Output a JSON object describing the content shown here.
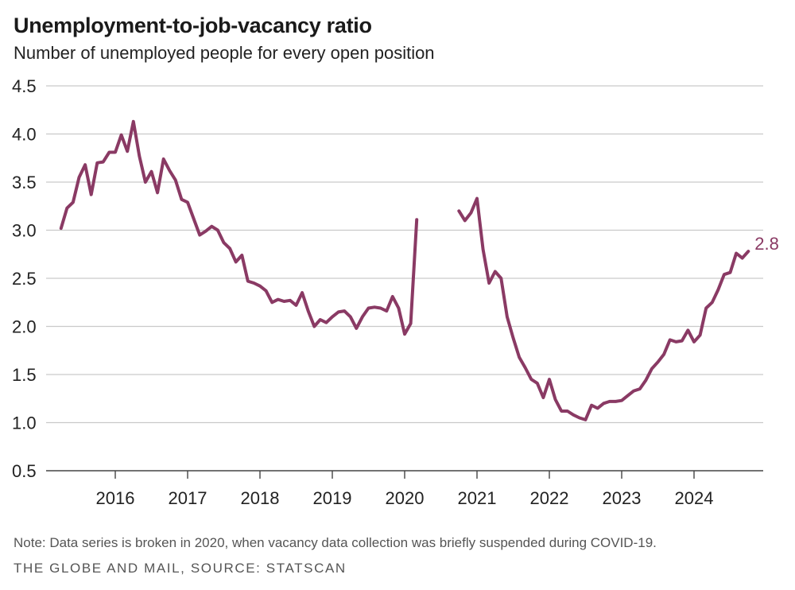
{
  "chart_data": {
    "type": "line",
    "title": "Unemployment-to-job-vacancy ratio",
    "subtitle": "Number of unemployed people for every open position",
    "xlabel": "",
    "ylabel": "",
    "ylim": [
      0.5,
      4.5
    ],
    "yticks": [
      "0.5",
      "1.0",
      "1.5",
      "2.0",
      "2.5",
      "3.0",
      "3.5",
      "4.0",
      "4.5"
    ],
    "xticks": [
      "2016",
      "2017",
      "2018",
      "2019",
      "2020",
      "2021",
      "2022",
      "2023",
      "2024"
    ],
    "end_label": "2.8",
    "series": [
      {
        "name": "Unemployment-to-job-vacancy ratio",
        "color": "#8a3a64",
        "segments": [
          [
            [
              2015.25,
              3.02
            ],
            [
              2015.333,
              3.23
            ],
            [
              2015.417,
              3.29
            ],
            [
              2015.5,
              3.55
            ],
            [
              2015.583,
              3.68
            ],
            [
              2015.667,
              3.37
            ],
            [
              2015.75,
              3.7
            ],
            [
              2015.833,
              3.71
            ],
            [
              2015.917,
              3.81
            ],
            [
              2016.0,
              3.81
            ],
            [
              2016.083,
              3.99
            ],
            [
              2016.167,
              3.82
            ],
            [
              2016.25,
              4.13
            ],
            [
              2016.333,
              3.77
            ],
            [
              2016.417,
              3.5
            ],
            [
              2016.5,
              3.61
            ],
            [
              2016.583,
              3.39
            ],
            [
              2016.667,
              3.74
            ],
            [
              2016.75,
              3.62
            ],
            [
              2016.833,
              3.52
            ],
            [
              2016.917,
              3.32
            ],
            [
              2017.0,
              3.29
            ],
            [
              2017.083,
              3.12
            ],
            [
              2017.167,
              2.95
            ],
            [
              2017.25,
              2.99
            ],
            [
              2017.333,
              3.04
            ],
            [
              2017.417,
              3.0
            ],
            [
              2017.5,
              2.87
            ],
            [
              2017.583,
              2.81
            ],
            [
              2017.667,
              2.67
            ],
            [
              2017.75,
              2.74
            ],
            [
              2017.833,
              2.47
            ],
            [
              2017.917,
              2.45
            ],
            [
              2018.0,
              2.42
            ],
            [
              2018.083,
              2.37
            ],
            [
              2018.167,
              2.25
            ],
            [
              2018.25,
              2.28
            ],
            [
              2018.333,
              2.26
            ],
            [
              2018.417,
              2.27
            ],
            [
              2018.5,
              2.22
            ],
            [
              2018.583,
              2.35
            ],
            [
              2018.667,
              2.16
            ],
            [
              2018.75,
              2.0
            ],
            [
              2018.833,
              2.07
            ],
            [
              2018.917,
              2.04
            ],
            [
              2019.0,
              2.1
            ],
            [
              2019.083,
              2.15
            ],
            [
              2019.167,
              2.16
            ],
            [
              2019.25,
              2.1
            ],
            [
              2019.333,
              1.98
            ],
            [
              2019.417,
              2.1
            ],
            [
              2019.5,
              2.19
            ],
            [
              2019.583,
              2.2
            ],
            [
              2019.667,
              2.19
            ],
            [
              2019.75,
              2.16
            ],
            [
              2019.833,
              2.31
            ],
            [
              2019.917,
              2.19
            ],
            [
              2020.0,
              1.92
            ],
            [
              2020.083,
              2.03
            ],
            [
              2020.167,
              3.11
            ]
          ],
          [
            [
              2020.75,
              3.2
            ],
            [
              2020.833,
              3.1
            ],
            [
              2020.917,
              3.18
            ],
            [
              2021.0,
              3.33
            ],
            [
              2021.083,
              2.8
            ],
            [
              2021.167,
              2.45
            ],
            [
              2021.25,
              2.57
            ],
            [
              2021.333,
              2.5
            ],
            [
              2021.417,
              2.1
            ],
            [
              2021.5,
              1.88
            ],
            [
              2021.583,
              1.68
            ],
            [
              2021.667,
              1.57
            ],
            [
              2021.75,
              1.45
            ],
            [
              2021.833,
              1.41
            ],
            [
              2021.917,
              1.26
            ],
            [
              2022.0,
              1.45
            ],
            [
              2022.083,
              1.24
            ],
            [
              2022.167,
              1.12
            ],
            [
              2022.25,
              1.12
            ],
            [
              2022.333,
              1.08
            ],
            [
              2022.417,
              1.05
            ],
            [
              2022.5,
              1.03
            ],
            [
              2022.583,
              1.18
            ],
            [
              2022.667,
              1.15
            ],
            [
              2022.75,
              1.2
            ],
            [
              2022.833,
              1.22
            ],
            [
              2022.917,
              1.22
            ],
            [
              2023.0,
              1.23
            ],
            [
              2023.083,
              1.28
            ],
            [
              2023.167,
              1.33
            ],
            [
              2023.25,
              1.35
            ],
            [
              2023.333,
              1.44
            ],
            [
              2023.417,
              1.56
            ],
            [
              2023.5,
              1.63
            ],
            [
              2023.583,
              1.71
            ],
            [
              2023.667,
              1.86
            ],
            [
              2023.75,
              1.84
            ],
            [
              2023.833,
              1.85
            ],
            [
              2023.917,
              1.96
            ],
            [
              2024.0,
              1.84
            ],
            [
              2024.083,
              1.91
            ],
            [
              2024.167,
              2.19
            ],
            [
              2024.25,
              2.25
            ],
            [
              2024.333,
              2.38
            ],
            [
              2024.417,
              2.54
            ],
            [
              2024.5,
              2.56
            ],
            [
              2024.583,
              2.76
            ],
            [
              2024.667,
              2.71
            ],
            [
              2024.75,
              2.78
            ]
          ]
        ]
      }
    ]
  },
  "footer": {
    "note": "Note: Data series is broken in 2020, when vacancy data collection was briefly suspended during COVID-19.",
    "source": "THE GLOBE AND MAIL, SOURCE: STATSCAN"
  }
}
